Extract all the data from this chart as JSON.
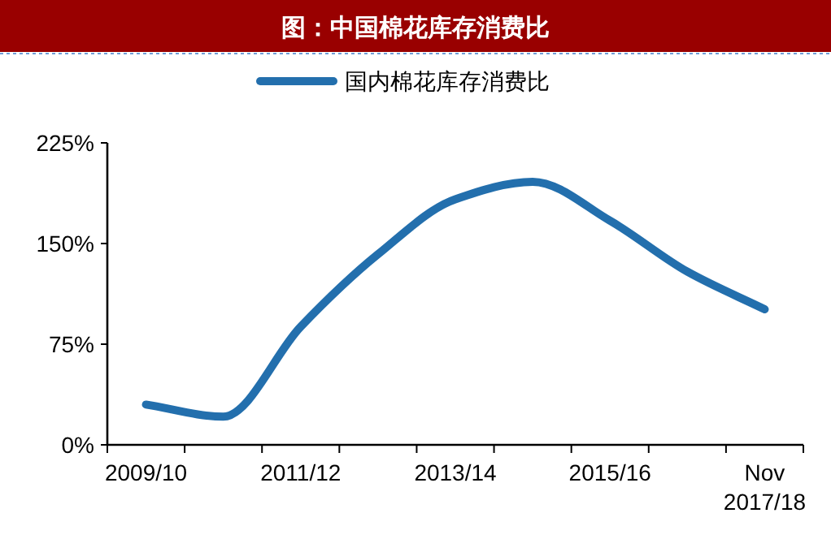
{
  "chart_data": {
    "type": "line",
    "title": "图：中国棉花库存消费比",
    "categories": [
      "2009/10",
      null,
      "2011/12",
      null,
      "2013/14",
      null,
      "2015/16",
      null,
      "Nov 2017/18"
    ],
    "series": [
      {
        "name": "国内棉花库存消费比",
        "color": "#236fad",
        "values": [
          30,
          21,
          88,
          142,
          183,
          196,
          167,
          129,
          101
        ]
      }
    ],
    "ylim": [
      0,
      225
    ],
    "yticks": [
      {
        "value": 0,
        "label": "0%"
      },
      {
        "value": 75,
        "label": "75%"
      },
      {
        "value": 150,
        "label": "150%"
      },
      {
        "value": 225,
        "label": "225%"
      }
    ],
    "legend": "top",
    "grid": false
  }
}
